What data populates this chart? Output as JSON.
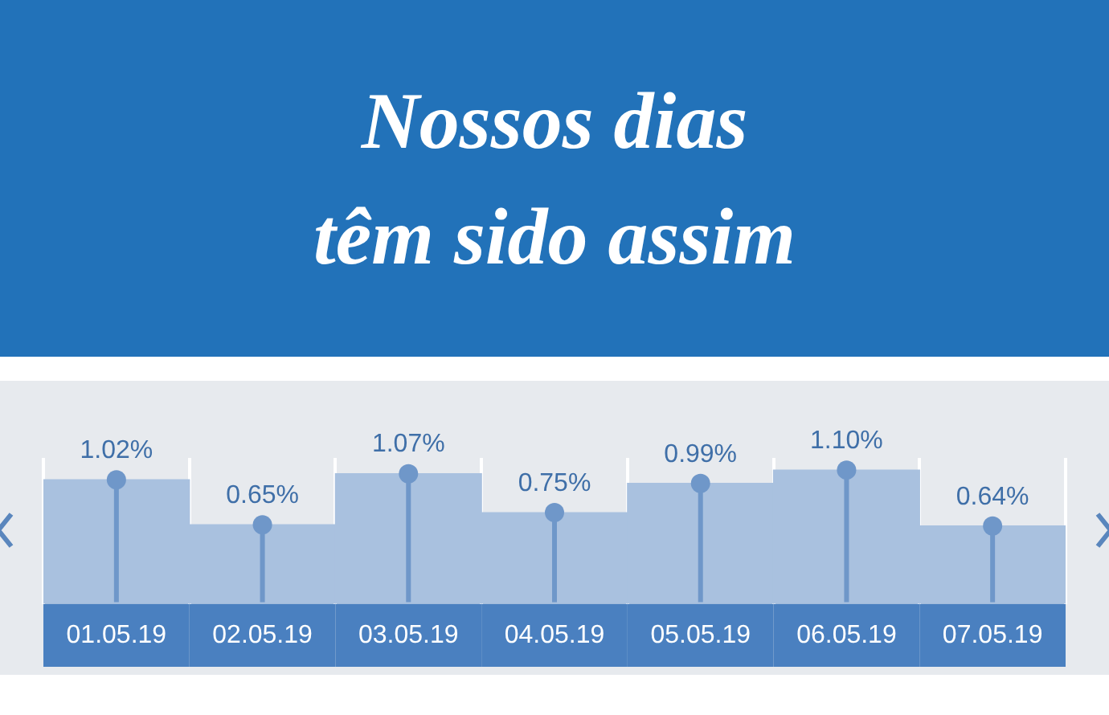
{
  "chart_data": {
    "type": "bar",
    "title": "Nossos dias\ntêm sido assim",
    "categories": [
      "01.05.19",
      "02.05.19",
      "03.05.19",
      "04.05.19",
      "05.05.19",
      "06.05.19",
      "07.05.19"
    ],
    "series": [
      {
        "type": "bar",
        "color": "#a9c1df",
        "values": [
          1.02,
          0.65,
          1.07,
          0.75,
          0.99,
          1.1,
          0.64
        ],
        "value_labels": [
          "1.02%",
          "0.65%",
          "1.07%",
          "0.75%",
          "0.99%",
          "1.10%",
          "0.64%"
        ]
      },
      {
        "type": "lollipop",
        "color": "#6f97c9",
        "values": [
          1.02,
          0.65,
          1.07,
          0.75,
          0.99,
          1.1,
          0.64
        ]
      }
    ],
    "marker": "circle",
    "tick_labels": "x",
    "grid": "x",
    "legend": false
  }
}
